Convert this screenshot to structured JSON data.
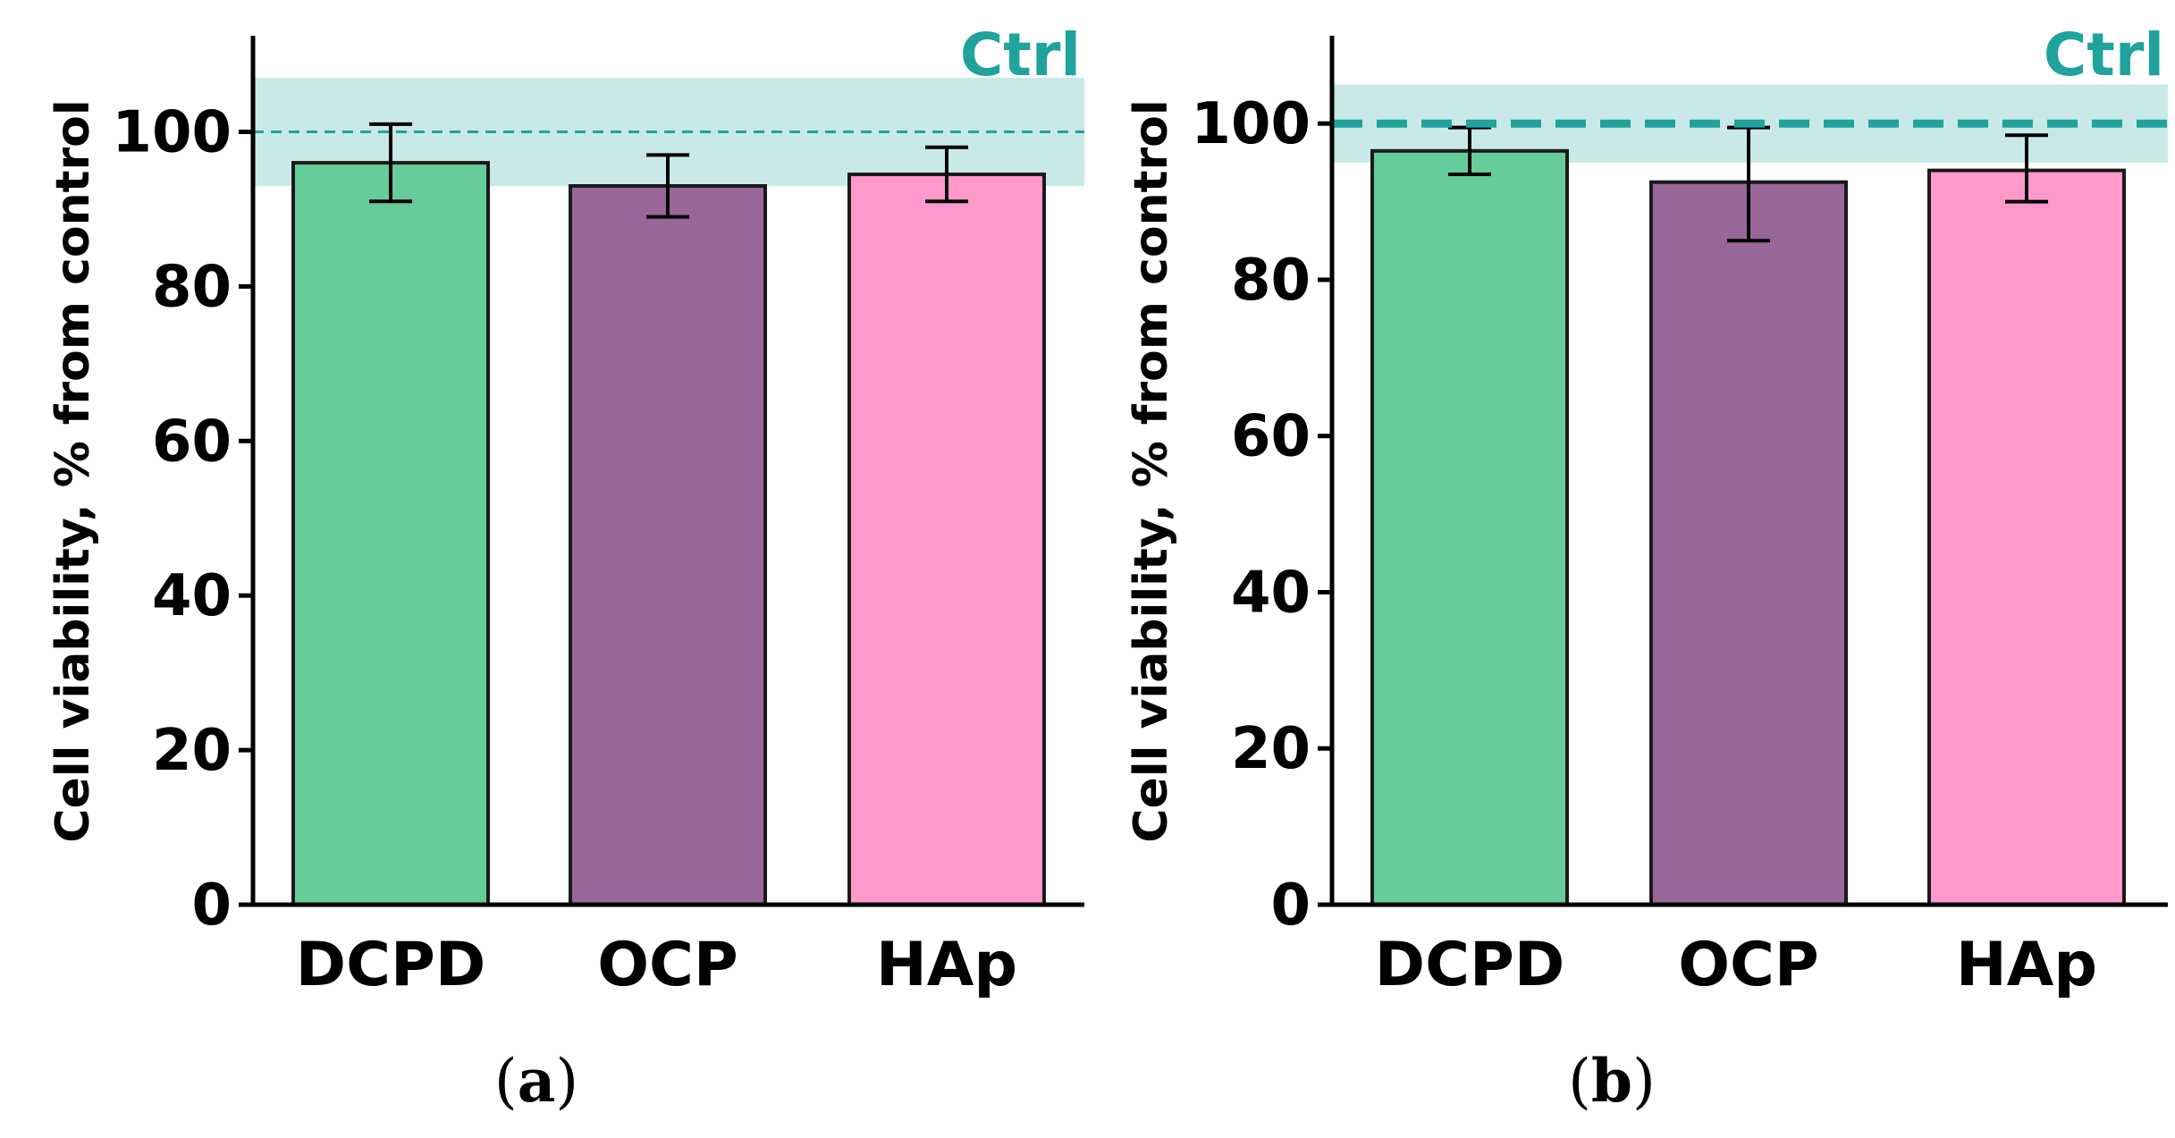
{
  "colors": {
    "ctrl": "#1fa39c",
    "band": "#c9e9e8",
    "DCPD": "#66cc99",
    "OCP": "#996699",
    "HAp": "#ff99cc",
    "bar_stroke": "#1a1a1a",
    "axis": "#000000"
  },
  "chart_data": [
    {
      "type": "bar",
      "panel": "a",
      "panel_label": "(a)",
      "ylabel": "Cell viability, % from control",
      "ylim": [
        0,
        112
      ],
      "yticks": [
        "0",
        "20",
        "40",
        "60",
        "80",
        "100"
      ],
      "categories": [
        "DCPD",
        "OCP",
        "HAp"
      ],
      "values": [
        96,
        93,
        94.5
      ],
      "errors": [
        [
          91,
          101
        ],
        [
          89,
          97
        ],
        [
          91,
          98
        ]
      ],
      "control": {
        "label": "Ctrl",
        "value": 100,
        "band": [
          93,
          107
        ],
        "line_style": "thin-dashed"
      }
    },
    {
      "type": "bar",
      "panel": "b",
      "panel_label": "(b)",
      "ylabel": "Cell viability, % from control",
      "ylim": [
        0,
        112
      ],
      "yticks": [
        "0",
        "20",
        "40",
        "60",
        "80",
        "100"
      ],
      "categories": [
        "DCPD",
        "OCP",
        "HAp"
      ],
      "values": [
        96.5,
        92.5,
        94
      ],
      "errors": [
        [
          93.5,
          99.5
        ],
        [
          85,
          99.5
        ],
        [
          90,
          98.5
        ]
      ],
      "control": {
        "label": "Ctrl",
        "value": 100,
        "band": [
          95,
          105
        ],
        "line_style": "thick-dashed"
      }
    }
  ]
}
